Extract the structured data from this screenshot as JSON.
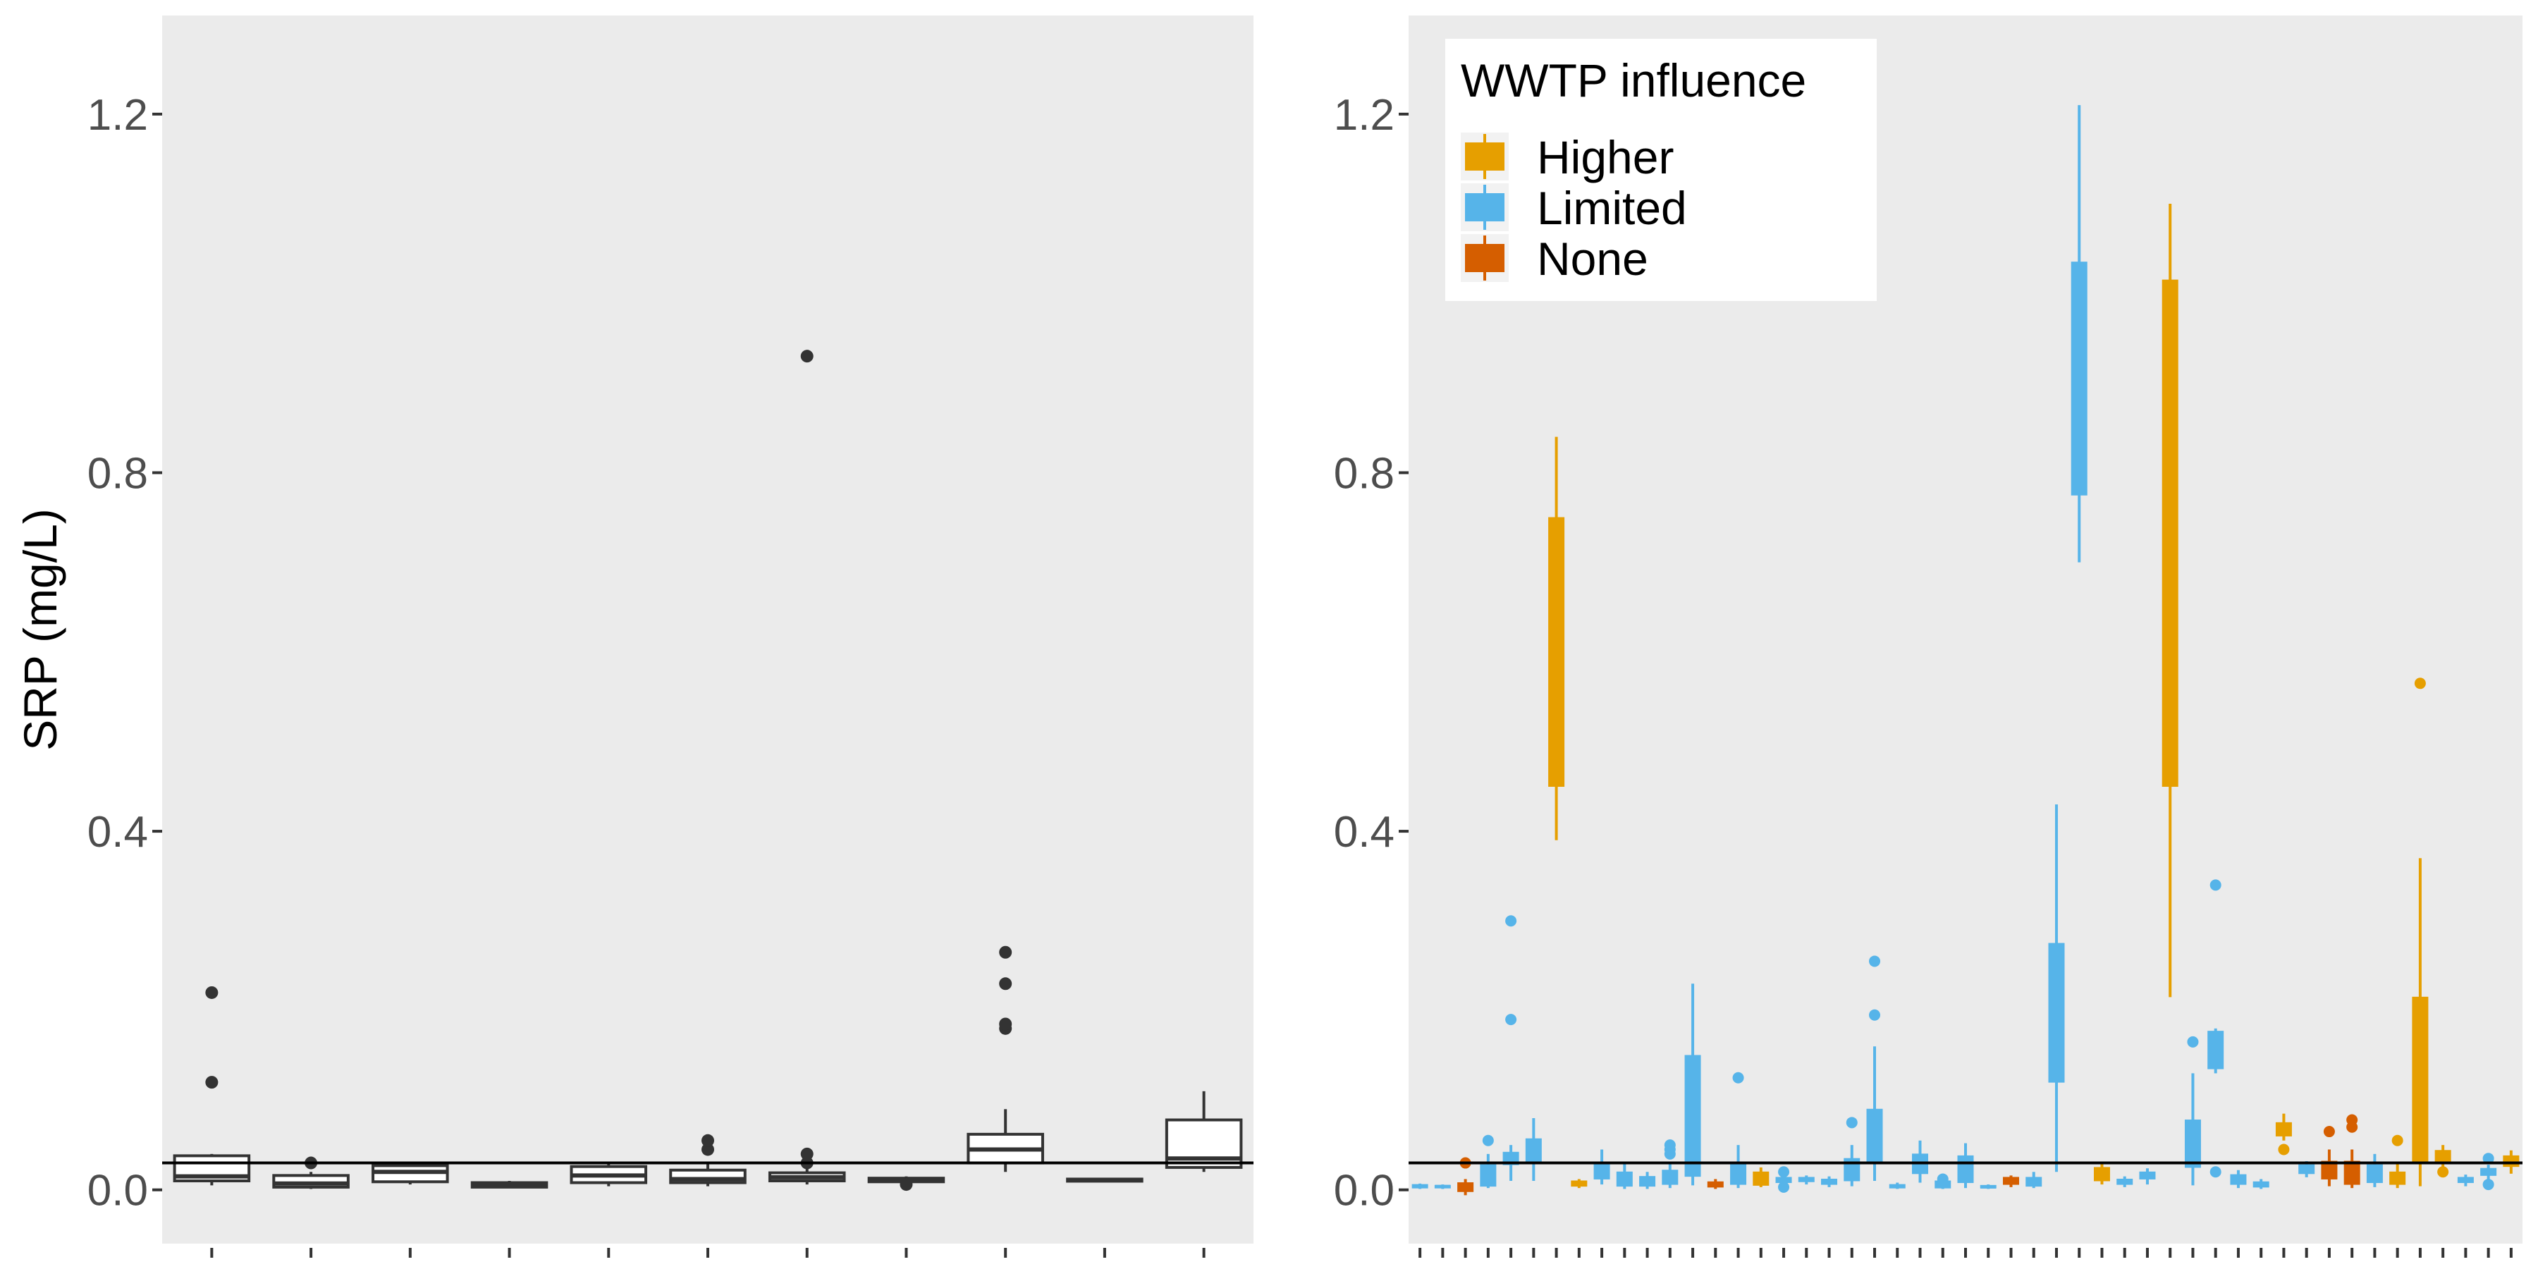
{
  "chart_data": [
    {
      "type": "boxplot",
      "panel": "left",
      "ylabel": "SRP (mg/L)",
      "ylim": [
        -0.06,
        1.31
      ],
      "yticks": [
        0.0,
        0.4,
        0.8,
        1.2
      ],
      "ytick_labels": [
        "0.0",
        "0.4",
        "0.8",
        "1.2"
      ],
      "reference_line": 0.03,
      "grid": false,
      "boxes": [
        {
          "q1": 0.01,
          "median": 0.015,
          "q3": 0.038,
          "whisker_low": 0.005,
          "whisker_high": 0.04,
          "outliers": [
            0.12,
            0.22
          ]
        },
        {
          "q1": 0.003,
          "median": 0.007,
          "q3": 0.016,
          "whisker_low": 0.001,
          "whisker_high": 0.02,
          "outliers": [
            0.03
          ]
        },
        {
          "q1": 0.009,
          "median": 0.02,
          "q3": 0.027,
          "whisker_low": 0.006,
          "whisker_high": 0.03,
          "outliers": []
        },
        {
          "q1": 0.003,
          "median": 0.006,
          "q3": 0.008,
          "whisker_low": 0.002,
          "whisker_high": 0.01,
          "outliers": []
        },
        {
          "q1": 0.008,
          "median": 0.016,
          "q3": 0.026,
          "whisker_low": 0.004,
          "whisker_high": 0.03,
          "outliers": []
        },
        {
          "q1": 0.008,
          "median": 0.012,
          "q3": 0.022,
          "whisker_low": 0.004,
          "whisker_high": 0.03,
          "outliers": [
            0.045,
            0.055
          ]
        },
        {
          "q1": 0.01,
          "median": 0.014,
          "q3": 0.019,
          "whisker_low": 0.006,
          "whisker_high": 0.025,
          "outliers": [
            0.03,
            0.04,
            0.93
          ]
        },
        {
          "q1": 0.009,
          "median": 0.011,
          "q3": 0.013,
          "whisker_low": 0.007,
          "whisker_high": 0.015,
          "outliers": [
            0.006
          ]
        },
        {
          "q1": 0.03,
          "median": 0.045,
          "q3": 0.062,
          "whisker_low": 0.02,
          "whisker_high": 0.09,
          "outliers": [
            0.18,
            0.185,
            0.23,
            0.265
          ]
        },
        {
          "q1": 0.01,
          "median": 0.011,
          "q3": 0.012,
          "whisker_low": 0.009,
          "whisker_high": 0.013,
          "outliers": []
        },
        {
          "q1": 0.025,
          "median": 0.035,
          "q3": 0.078,
          "whisker_low": 0.02,
          "whisker_high": 0.11,
          "outliers": []
        }
      ]
    },
    {
      "type": "boxplot",
      "panel": "right",
      "ylim": [
        -0.06,
        1.31
      ],
      "yticks": [
        0.0,
        0.4,
        0.8,
        1.2
      ],
      "ytick_labels": [
        "0.0",
        "0.4",
        "0.8",
        "1.2"
      ],
      "reference_line": 0.03,
      "legend": {
        "title": "WWTP influence",
        "position": "top-left",
        "entries": [
          {
            "label": "Higher",
            "color": "#E69F00"
          },
          {
            "label": "Limited",
            "color": "#56B4E9"
          },
          {
            "label": "None",
            "color": "#D55E00"
          }
        ]
      },
      "boxes": [
        {
          "group": "Limited",
          "q1": 0.002,
          "median": 0.004,
          "q3": 0.006,
          "whisker_low": 0.001,
          "whisker_high": 0.007,
          "outliers": []
        },
        {
          "group": "Limited",
          "q1": 0.002,
          "median": 0.004,
          "q3": 0.005,
          "whisker_low": 0.001,
          "whisker_high": 0.006,
          "outliers": []
        },
        {
          "group": "None",
          "q1": -0.002,
          "median": 0.004,
          "q3": 0.008,
          "whisker_low": -0.006,
          "whisker_high": 0.012,
          "outliers": [
            0.03
          ]
        },
        {
          "group": "Limited",
          "q1": 0.004,
          "median": 0.012,
          "q3": 0.028,
          "whisker_low": 0.002,
          "whisker_high": 0.04,
          "outliers": [
            0.055
          ]
        },
        {
          "group": "Limited",
          "q1": 0.028,
          "median": 0.035,
          "q3": 0.042,
          "whisker_low": 0.01,
          "whisker_high": 0.05,
          "outliers": [
            0.19,
            0.3
          ]
        },
        {
          "group": "Limited",
          "q1": 0.03,
          "median": 0.042,
          "q3": 0.057,
          "whisker_low": 0.01,
          "whisker_high": 0.08,
          "outliers": []
        },
        {
          "group": "Higher",
          "q1": 0.45,
          "median": 0.6,
          "q3": 0.75,
          "whisker_low": 0.39,
          "whisker_high": 0.84,
          "outliers": []
        },
        {
          "group": "Higher",
          "q1": 0.004,
          "median": 0.007,
          "q3": 0.01,
          "whisker_low": 0.002,
          "whisker_high": 0.012,
          "outliers": []
        },
        {
          "group": "Limited",
          "q1": 0.012,
          "median": 0.02,
          "q3": 0.03,
          "whisker_low": 0.006,
          "whisker_high": 0.045,
          "outliers": []
        },
        {
          "group": "Limited",
          "q1": 0.004,
          "median": 0.01,
          "q3": 0.02,
          "whisker_low": 0.001,
          "whisker_high": 0.03,
          "outliers": []
        },
        {
          "group": "Limited",
          "q1": 0.004,
          "median": 0.009,
          "q3": 0.015,
          "whisker_low": 0.001,
          "whisker_high": 0.02,
          "outliers": []
        },
        {
          "group": "Limited",
          "q1": 0.006,
          "median": 0.013,
          "q3": 0.022,
          "whisker_low": 0.002,
          "whisker_high": 0.03,
          "outliers": [
            0.04,
            0.045,
            0.05
          ]
        },
        {
          "group": "Limited",
          "q1": 0.015,
          "median": 0.08,
          "q3": 0.15,
          "whisker_low": 0.005,
          "whisker_high": 0.23,
          "outliers": []
        },
        {
          "group": "None",
          "q1": 0.003,
          "median": 0.006,
          "q3": 0.009,
          "whisker_low": 0.001,
          "whisker_high": 0.012,
          "outliers": []
        },
        {
          "group": "Limited",
          "q1": 0.006,
          "median": 0.014,
          "q3": 0.03,
          "whisker_low": 0.002,
          "whisker_high": 0.05,
          "outliers": [
            0.125
          ]
        },
        {
          "group": "Higher",
          "q1": 0.005,
          "median": 0.01,
          "q3": 0.02,
          "whisker_low": 0.003,
          "whisker_high": 0.025,
          "outliers": []
        },
        {
          "group": "Limited",
          "q1": 0.008,
          "median": 0.011,
          "q3": 0.014,
          "whisker_low": 0.004,
          "whisker_high": 0.018,
          "outliers": [
            0.003,
            0.02
          ]
        },
        {
          "group": "Limited",
          "q1": 0.009,
          "median": 0.011,
          "q3": 0.014,
          "whisker_low": 0.006,
          "whisker_high": 0.016,
          "outliers": []
        },
        {
          "group": "Limited",
          "q1": 0.006,
          "median": 0.009,
          "q3": 0.012,
          "whisker_low": 0.003,
          "whisker_high": 0.015,
          "outliers": []
        },
        {
          "group": "Limited",
          "q1": 0.01,
          "median": 0.02,
          "q3": 0.035,
          "whisker_low": 0.004,
          "whisker_high": 0.05,
          "outliers": [
            0.075
          ]
        },
        {
          "group": "Limited",
          "q1": 0.03,
          "median": 0.06,
          "q3": 0.09,
          "whisker_low": 0.01,
          "whisker_high": 0.16,
          "outliers": [
            0.195,
            0.255
          ]
        },
        {
          "group": "Limited",
          "q1": 0.002,
          "median": 0.004,
          "q3": 0.006,
          "whisker_low": 0.001,
          "whisker_high": 0.008,
          "outliers": []
        },
        {
          "group": "Limited",
          "q1": 0.018,
          "median": 0.028,
          "q3": 0.04,
          "whisker_low": 0.008,
          "whisker_high": 0.055,
          "outliers": []
        },
        {
          "group": "Limited",
          "q1": 0.002,
          "median": 0.005,
          "q3": 0.01,
          "whisker_low": 0.001,
          "whisker_high": 0.015,
          "outliers": [
            0.012
          ]
        },
        {
          "group": "Limited",
          "q1": 0.008,
          "median": 0.02,
          "q3": 0.038,
          "whisker_low": 0.002,
          "whisker_high": 0.052,
          "outliers": []
        },
        {
          "group": "Limited",
          "q1": 0.002,
          "median": 0.003,
          "q3": 0.005,
          "whisker_low": 0.001,
          "whisker_high": 0.006,
          "outliers": []
        },
        {
          "group": "None",
          "q1": 0.006,
          "median": 0.01,
          "q3": 0.014,
          "whisker_low": 0.003,
          "whisker_high": 0.016,
          "outliers": []
        },
        {
          "group": "Limited",
          "q1": 0.004,
          "median": 0.007,
          "q3": 0.014,
          "whisker_low": 0.002,
          "whisker_high": 0.02,
          "outliers": []
        },
        {
          "group": "Limited",
          "q1": 0.12,
          "median": 0.2,
          "q3": 0.275,
          "whisker_low": 0.02,
          "whisker_high": 0.43,
          "outliers": []
        },
        {
          "group": "Limited",
          "q1": 0.775,
          "median": 0.9,
          "q3": 1.035,
          "whisker_low": 0.7,
          "whisker_high": 1.21,
          "outliers": []
        },
        {
          "group": "Higher",
          "q1": 0.01,
          "median": 0.016,
          "q3": 0.025,
          "whisker_low": 0.006,
          "whisker_high": 0.03,
          "outliers": []
        },
        {
          "group": "Limited",
          "q1": 0.006,
          "median": 0.009,
          "q3": 0.012,
          "whisker_low": 0.003,
          "whisker_high": 0.015,
          "outliers": []
        },
        {
          "group": "Limited",
          "q1": 0.012,
          "median": 0.016,
          "q3": 0.02,
          "whisker_low": 0.006,
          "whisker_high": 0.024,
          "outliers": []
        },
        {
          "group": "Higher",
          "q1": 0.45,
          "median": 0.75,
          "q3": 1.015,
          "whisker_low": 0.215,
          "whisker_high": 1.1,
          "outliers": []
        },
        {
          "group": "Limited",
          "q1": 0.025,
          "median": 0.05,
          "q3": 0.078,
          "whisker_low": 0.005,
          "whisker_high": 0.13,
          "outliers": [
            0.165
          ]
        },
        {
          "group": "Limited",
          "q1": 0.135,
          "median": 0.155,
          "q3": 0.177,
          "whisker_low": 0.13,
          "whisker_high": 0.18,
          "outliers": [
            0.02,
            0.34
          ]
        },
        {
          "group": "Limited",
          "q1": 0.006,
          "median": 0.011,
          "q3": 0.017,
          "whisker_low": 0.002,
          "whisker_high": 0.022,
          "outliers": []
        },
        {
          "group": "Limited",
          "q1": 0.003,
          "median": 0.006,
          "q3": 0.009,
          "whisker_low": 0.001,
          "whisker_high": 0.012,
          "outliers": []
        },
        {
          "group": "Higher",
          "q1": 0.06,
          "median": 0.068,
          "q3": 0.075,
          "whisker_low": 0.055,
          "whisker_high": 0.085,
          "outliers": [
            0.045
          ]
        },
        {
          "group": "Limited",
          "q1": 0.018,
          "median": 0.023,
          "q3": 0.028,
          "whisker_low": 0.014,
          "whisker_high": 0.032,
          "outliers": []
        },
        {
          "group": "None",
          "q1": 0.012,
          "median": 0.022,
          "q3": 0.032,
          "whisker_low": 0.004,
          "whisker_high": 0.045,
          "outliers": [
            0.065
          ]
        },
        {
          "group": "None",
          "q1": 0.006,
          "median": 0.022,
          "q3": 0.032,
          "whisker_low": 0.002,
          "whisker_high": 0.045,
          "outliers": [
            0.07,
            0.078
          ]
        },
        {
          "group": "Limited",
          "q1": 0.008,
          "median": 0.016,
          "q3": 0.028,
          "whisker_low": 0.003,
          "whisker_high": 0.04,
          "outliers": []
        },
        {
          "group": "Higher",
          "q1": 0.006,
          "median": 0.013,
          "q3": 0.02,
          "whisker_low": 0.002,
          "whisker_high": 0.03,
          "outliers": [
            0.055
          ]
        },
        {
          "group": "Higher",
          "q1": 0.03,
          "median": 0.09,
          "q3": 0.215,
          "whisker_low": 0.004,
          "whisker_high": 0.37,
          "outliers": [
            0.565
          ]
        },
        {
          "group": "Higher",
          "q1": 0.03,
          "median": 0.036,
          "q3": 0.044,
          "whisker_low": 0.02,
          "whisker_high": 0.05,
          "outliers": [
            0.02
          ]
        },
        {
          "group": "Limited",
          "q1": 0.008,
          "median": 0.011,
          "q3": 0.014,
          "whisker_low": 0.004,
          "whisker_high": 0.017,
          "outliers": []
        },
        {
          "group": "Limited",
          "q1": 0.016,
          "median": 0.02,
          "q3": 0.024,
          "whisker_low": 0.01,
          "whisker_high": 0.028,
          "outliers": [
            0.006,
            0.035
          ]
        },
        {
          "group": "Higher",
          "q1": 0.026,
          "median": 0.032,
          "q3": 0.038,
          "whisker_low": 0.018,
          "whisker_high": 0.044,
          "outliers": []
        }
      ]
    }
  ]
}
